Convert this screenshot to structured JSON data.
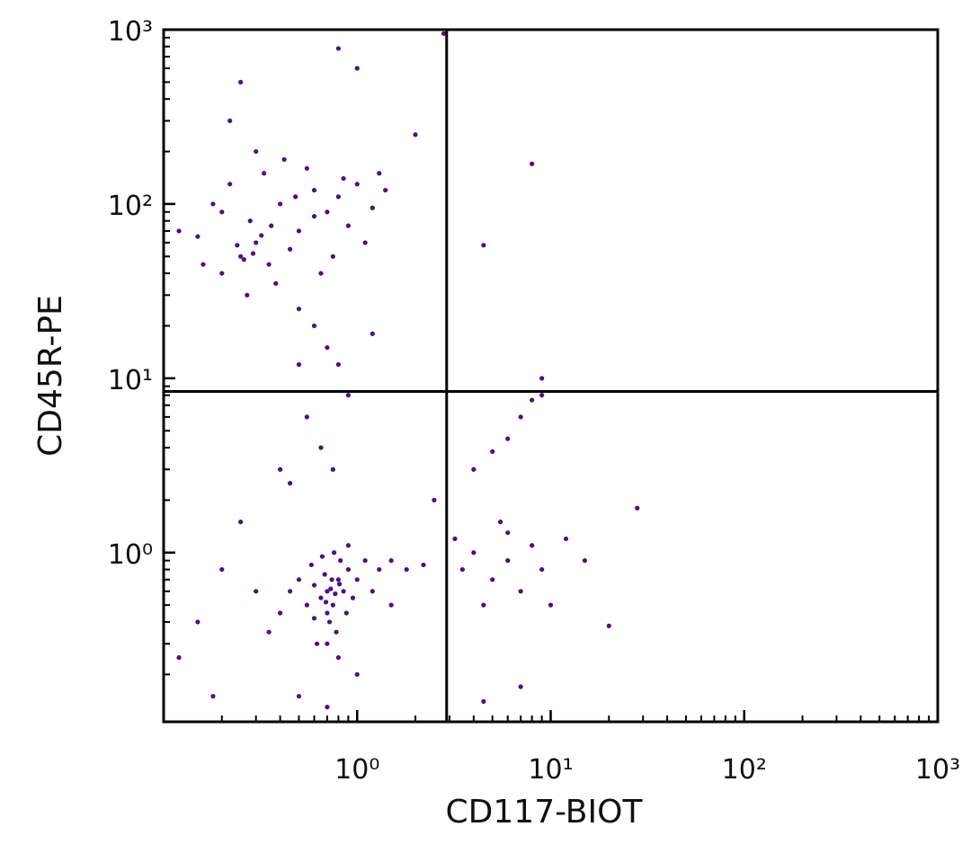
{
  "chart_data": {
    "type": "scatter",
    "xlabel": "CD117-BIOT",
    "ylabel": "CD45R-PE",
    "xscale": "log",
    "yscale": "log",
    "xlim": [
      0.1,
      1000
    ],
    "ylim": [
      0.107,
      1000
    ],
    "xticks": [
      {
        "value": 1,
        "label": "10⁰"
      },
      {
        "value": 10,
        "label": "10¹"
      },
      {
        "value": 100,
        "label": "10²"
      },
      {
        "value": 1000,
        "label": "10³"
      }
    ],
    "yticks": [
      {
        "value": 1,
        "label": "10⁰"
      },
      {
        "value": 10,
        "label": "10¹"
      },
      {
        "value": 100,
        "label": "10²"
      },
      {
        "value": 1000,
        "label": "10³"
      }
    ],
    "xminor_ticks": [
      0.2,
      0.3,
      0.4,
      0.5,
      0.6,
      0.7,
      0.8,
      0.9,
      2,
      3,
      4,
      5,
      6,
      7,
      8,
      9,
      20,
      30,
      40,
      50,
      60,
      70,
      80,
      90,
      200,
      300,
      400,
      500,
      600,
      700,
      800,
      900
    ],
    "yminor_ticks": [
      0.2,
      0.3,
      0.4,
      0.5,
      0.6,
      0.7,
      0.8,
      0.9,
      2,
      3,
      4,
      5,
      6,
      7,
      8,
      9,
      20,
      30,
      40,
      50,
      60,
      70,
      80,
      90,
      200,
      300,
      400,
      500,
      600,
      700,
      800,
      900
    ],
    "gates": {
      "x": 2.9,
      "y": 8.4
    },
    "series": [
      {
        "color": "#4b1089",
        "x": [
          0.25,
          0.3,
          0.35,
          0.28,
          0.4,
          0.5,
          0.6,
          0.2,
          0.15,
          0.45,
          0.7,
          0.8,
          1.0,
          1.2,
          0.33,
          0.22,
          0.18,
          0.12,
          0.55,
          0.65,
          0.9,
          1.1,
          1.4,
          0.38,
          0.27,
          0.5,
          0.75,
          0.3,
          0.42,
          0.16,
          0.24,
          0.26,
          0.29,
          0.32,
          0.85,
          1.3,
          0.6,
          0.48,
          0.2,
          0.36,
          0.8,
          1.0,
          0.25,
          0.22,
          2.8,
          8,
          4.5,
          2.0,
          0.6,
          0.7,
          0.8,
          0.5,
          1.2,
          0.55,
          0.65,
          0.75,
          0.9,
          0.4,
          0.7,
          0.75,
          0.8,
          0.65,
          0.7,
          0.85,
          0.6,
          0.9,
          0.72,
          0.78,
          0.68,
          0.82,
          0.55,
          0.95,
          1.0,
          0.62,
          0.7,
          0.5,
          0.88,
          1.1,
          0.58,
          0.76,
          0.66,
          1.2,
          0.45,
          0.8,
          1.3,
          0.4,
          0.9,
          0.73,
          0.77,
          0.69,
          0.81,
          0.74,
          0.6,
          1.5,
          1.8,
          2.2,
          0.35,
          0.3,
          0.15,
          0.12,
          0.2,
          0.18,
          0.25,
          0.5,
          0.7,
          1.0,
          1.5,
          2.5,
          0.45,
          3.5,
          4,
          5,
          6,
          7,
          8,
          9,
          10,
          12,
          15,
          4.5,
          6,
          20,
          28,
          4.5,
          7,
          3.2,
          5.5,
          4,
          5,
          6,
          7,
          8,
          9,
          9
        ],
        "y": [
          50,
          60,
          45,
          80,
          100,
          70,
          120,
          40,
          65,
          55,
          90,
          110,
          130,
          95,
          150,
          130,
          100,
          70,
          160,
          40,
          75,
          60,
          120,
          35,
          30,
          25,
          50,
          200,
          180,
          45,
          58,
          48,
          52,
          66,
          140,
          150,
          85,
          110,
          90,
          75,
          780,
          600,
          500,
          300,
          950,
          170,
          58,
          250,
          20,
          15,
          12,
          12,
          18,
          6,
          4,
          3,
          8,
          3,
          0.6,
          0.5,
          0.7,
          0.55,
          0.45,
          0.6,
          0.65,
          0.8,
          0.4,
          0.35,
          0.75,
          0.9,
          0.5,
          0.55,
          0.7,
          0.3,
          0.3,
          0.7,
          0.45,
          0.9,
          0.85,
          1.0,
          0.95,
          0.6,
          0.6,
          0.25,
          0.8,
          0.45,
          1.1,
          0.62,
          0.58,
          0.52,
          0.66,
          0.7,
          0.42,
          0.9,
          0.8,
          0.85,
          0.35,
          0.6,
          0.4,
          0.25,
          0.8,
          0.15,
          1.5,
          0.15,
          0.13,
          0.2,
          0.5,
          2.0,
          2.5,
          0.8,
          1.0,
          0.7,
          0.9,
          0.6,
          1.1,
          0.8,
          0.5,
          1.2,
          0.9,
          0.5,
          1.3,
          0.38,
          1.8,
          0.14,
          0.17,
          1.2,
          1.5,
          3,
          3.8,
          4.5,
          6,
          7.5,
          10,
          8
        ]
      }
    ]
  }
}
